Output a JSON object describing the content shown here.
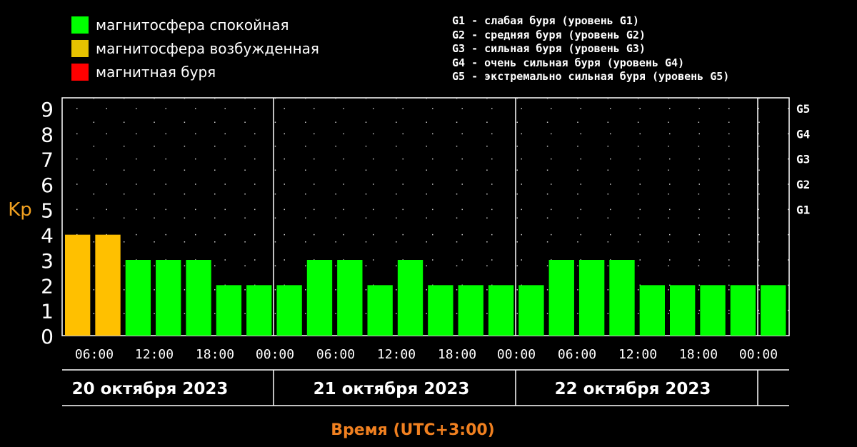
{
  "legend": {
    "items": [
      {
        "label": "магнитосфера спокойная",
        "color": "#00ff00"
      },
      {
        "label": "магнитосфера возбужденная",
        "color": "#e6c200"
      },
      {
        "label": "магнитная буря",
        "color": "#ff0000"
      }
    ],
    "levels": [
      "G1 - слабая буря (уровень G1)",
      "G2 - средняя буря (уровень G2)",
      "G3 - сильная буря (уровень G3)",
      "G4 - очень сильная буря (уровень G4)",
      "G5 - экстремально сильная буря (уровень G5)"
    ]
  },
  "chart_data": {
    "type": "bar",
    "ylabel": "Kp",
    "xlabel": "Время (UTC+3:00)",
    "ylim": [
      0,
      9
    ],
    "yticks": [
      "0",
      "1",
      "2",
      "3",
      "4",
      "5",
      "6",
      "7",
      "8",
      "9"
    ],
    "g_ticks": [
      {
        "label": "G1",
        "kp": 5
      },
      {
        "label": "G2",
        "kp": 6
      },
      {
        "label": "G3",
        "kp": 7
      },
      {
        "label": "G4",
        "kp": 8
      },
      {
        "label": "G5",
        "kp": 9
      }
    ],
    "x_tick_labels": [
      "06:00",
      "12:00",
      "18:00",
      "00:00",
      "06:00",
      "12:00",
      "18:00",
      "00:00",
      "06:00",
      "12:00",
      "18:00",
      "00:00"
    ],
    "days": [
      "20 октября 2023",
      "21 октября 2023",
      "22 октября 2023"
    ],
    "values": [
      4,
      4,
      3,
      3,
      3,
      2,
      2,
      2,
      3,
      3,
      2,
      3,
      2,
      2,
      2,
      2,
      3,
      3,
      3,
      2,
      2,
      2,
      2,
      2
    ],
    "colors": {
      "quiet": "#00ff00",
      "active": "#ffc000",
      "storm": "#ff0000"
    },
    "grid": true
  }
}
